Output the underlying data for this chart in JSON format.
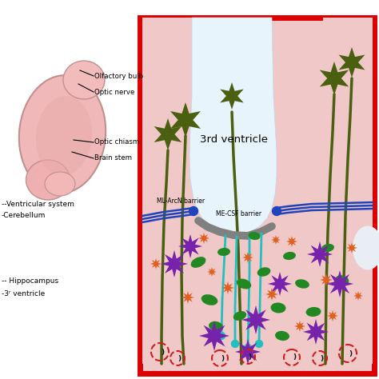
{
  "bg": "#ffffff",
  "tissue_fill": "#f0c8c8",
  "tissue_edge": "#d8a8a8",
  "ventricle_fill": "#e8f4fc",
  "red_border": "#dd0000",
  "barrier_gray": "#808080",
  "barrier_blue": "#2244bb",
  "blue_dot": "#2244bb",
  "axon_green": "#4a6010",
  "star_purple": "#7722aa",
  "star_orange": "#e06020",
  "cyan_line": "#20c0c0",
  "cell_green": "#228822",
  "dashed_red": "#cc2020",
  "black_bracket": "#111111",
  "brain_pink1": "#f0b8b8",
  "brain_pink2": "#e8a8a8",
  "brain_edge": "#c09090",
  "label_color": "#000000",
  "ventricle_text": "3rd ventricle",
  "barrier1_text": "ML-ArcN barrier",
  "barrier2_text": "ME-CSF barrier",
  "brain_label_lines": [
    [
      55,
      82,
      98,
      98,
      "Olfactory bulb"
    ],
    [
      50,
      100,
      98,
      118,
      "Optic nerve"
    ],
    [
      45,
      168,
      98,
      178,
      "Optic chiasm"
    ],
    [
      48,
      188,
      98,
      200,
      "Brain stem"
    ]
  ],
  "left_side_labels": [
    [
      2,
      255,
      "--Ventricular system"
    ],
    [
      2,
      272,
      "-Cerebellum"
    ],
    [
      2,
      355,
      "-- Hippocampus"
    ],
    [
      2,
      372,
      "-3ʳ ventricle"
    ]
  ]
}
